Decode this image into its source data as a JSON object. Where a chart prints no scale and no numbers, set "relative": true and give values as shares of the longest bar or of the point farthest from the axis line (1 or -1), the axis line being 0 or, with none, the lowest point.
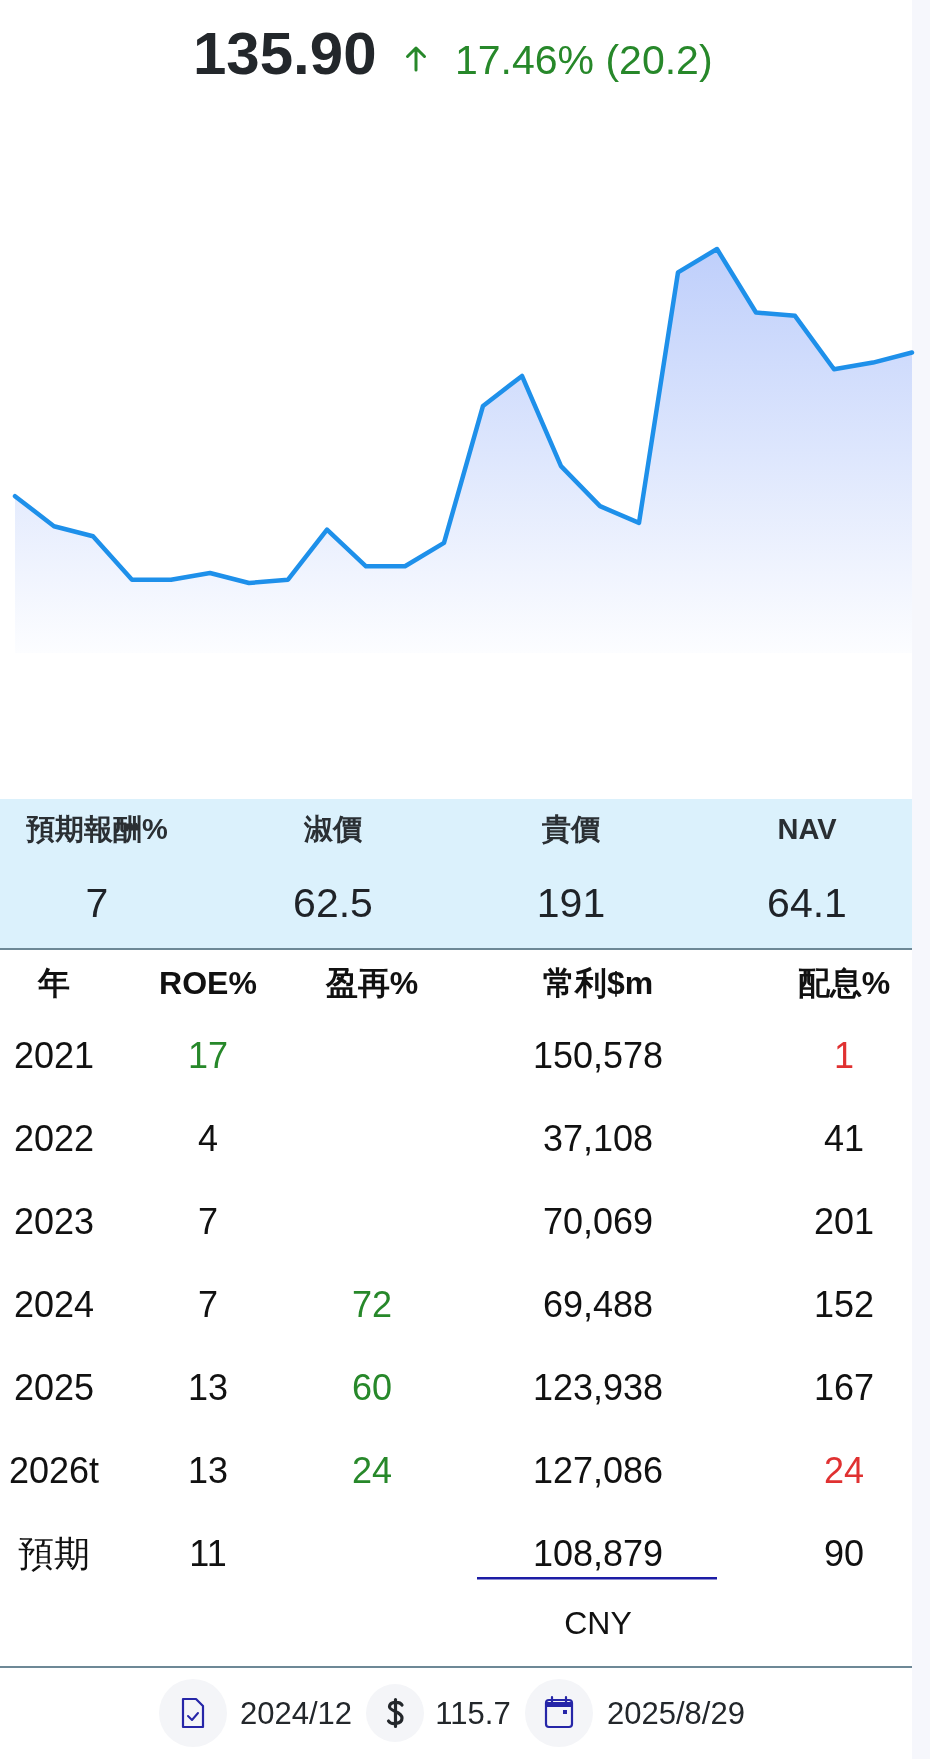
{
  "chart_data": [
    {
      "type": "area",
      "title": "135.90",
      "subtitle": "17.46% (20.2)",
      "relative": true,
      "categories": [
        null,
        null,
        null,
        null,
        null,
        null,
        null,
        null,
        null,
        null,
        null,
        null,
        null,
        null,
        null,
        null,
        null,
        null,
        null,
        null,
        null,
        null,
        null,
        null
      ],
      "series": [
        {
          "color": "#1e90ea",
          "values": [
            0.26,
            0.17,
            0.14,
            0.01,
            0.01,
            0.03,
            0,
            0.01,
            0.16,
            0.05,
            0.05,
            0.12,
            0.53,
            0.62,
            0.35,
            0.23,
            0.18,
            0.93,
            1,
            0.81,
            0.8,
            0.64,
            0.66,
            0.69
          ]
        }
      ]
    },
    {
      "type": "other",
      "categories": [
        "預期報酬%",
        "淑價",
        "貴價",
        "NAV"
      ],
      "values": [
        7,
        62.5,
        191,
        64.1
      ],
      "data_labels": true
    },
    {
      "type": "heatmap",
      "ylabel": "年",
      "categories": [
        "ROE%",
        "盈再%",
        "常利$m",
        "配息%"
      ],
      "y_categories": [
        "2021",
        "2022",
        "2023",
        "2024",
        "2025",
        "2026t",
        "預期"
      ],
      "cells": [
        [
          17,
          null,
          150578,
          1
        ],
        [
          4,
          null,
          37108,
          41
        ],
        [
          7,
          null,
          70069,
          201
        ],
        [
          7,
          72,
          69488,
          152
        ],
        [
          13,
          60,
          123938,
          167
        ],
        [
          13,
          24,
          127086,
          24
        ],
        [
          11,
          null,
          108879,
          90
        ]
      ],
      "cell_labels": [
        [
          "17",
          null,
          "150,578",
          "1"
        ],
        [
          "4",
          null,
          "37,108",
          "41"
        ],
        [
          "7",
          null,
          "70,069",
          "201"
        ],
        [
          "7",
          "72",
          "69,488",
          "152"
        ],
        [
          "13",
          "60",
          "123,938",
          "167"
        ],
        [
          "13",
          "24",
          "127,086",
          "24"
        ],
        [
          "11",
          null,
          "108,879",
          "90"
        ]
      ],
      "colors": [
        [
          "#27882a",
          null,
          "#111111",
          "#e03131"
        ],
        [
          "#111111",
          null,
          "#111111",
          "#111111"
        ],
        [
          "#111111",
          null,
          "#111111",
          "#111111"
        ],
        [
          "#111111",
          "#27882a",
          "#111111",
          "#111111"
        ],
        [
          "#111111",
          "#27882a",
          "#111111",
          "#111111"
        ],
        [
          "#111111",
          "#27882a",
          "#111111",
          "#e03131"
        ],
        [
          "#111111",
          null,
          "#111111",
          "#111111"
        ]
      ],
      "annotations": [
        "CNY",
        "2024/12",
        "115.7",
        "2025/8/29"
      ]
    }
  ]
}
